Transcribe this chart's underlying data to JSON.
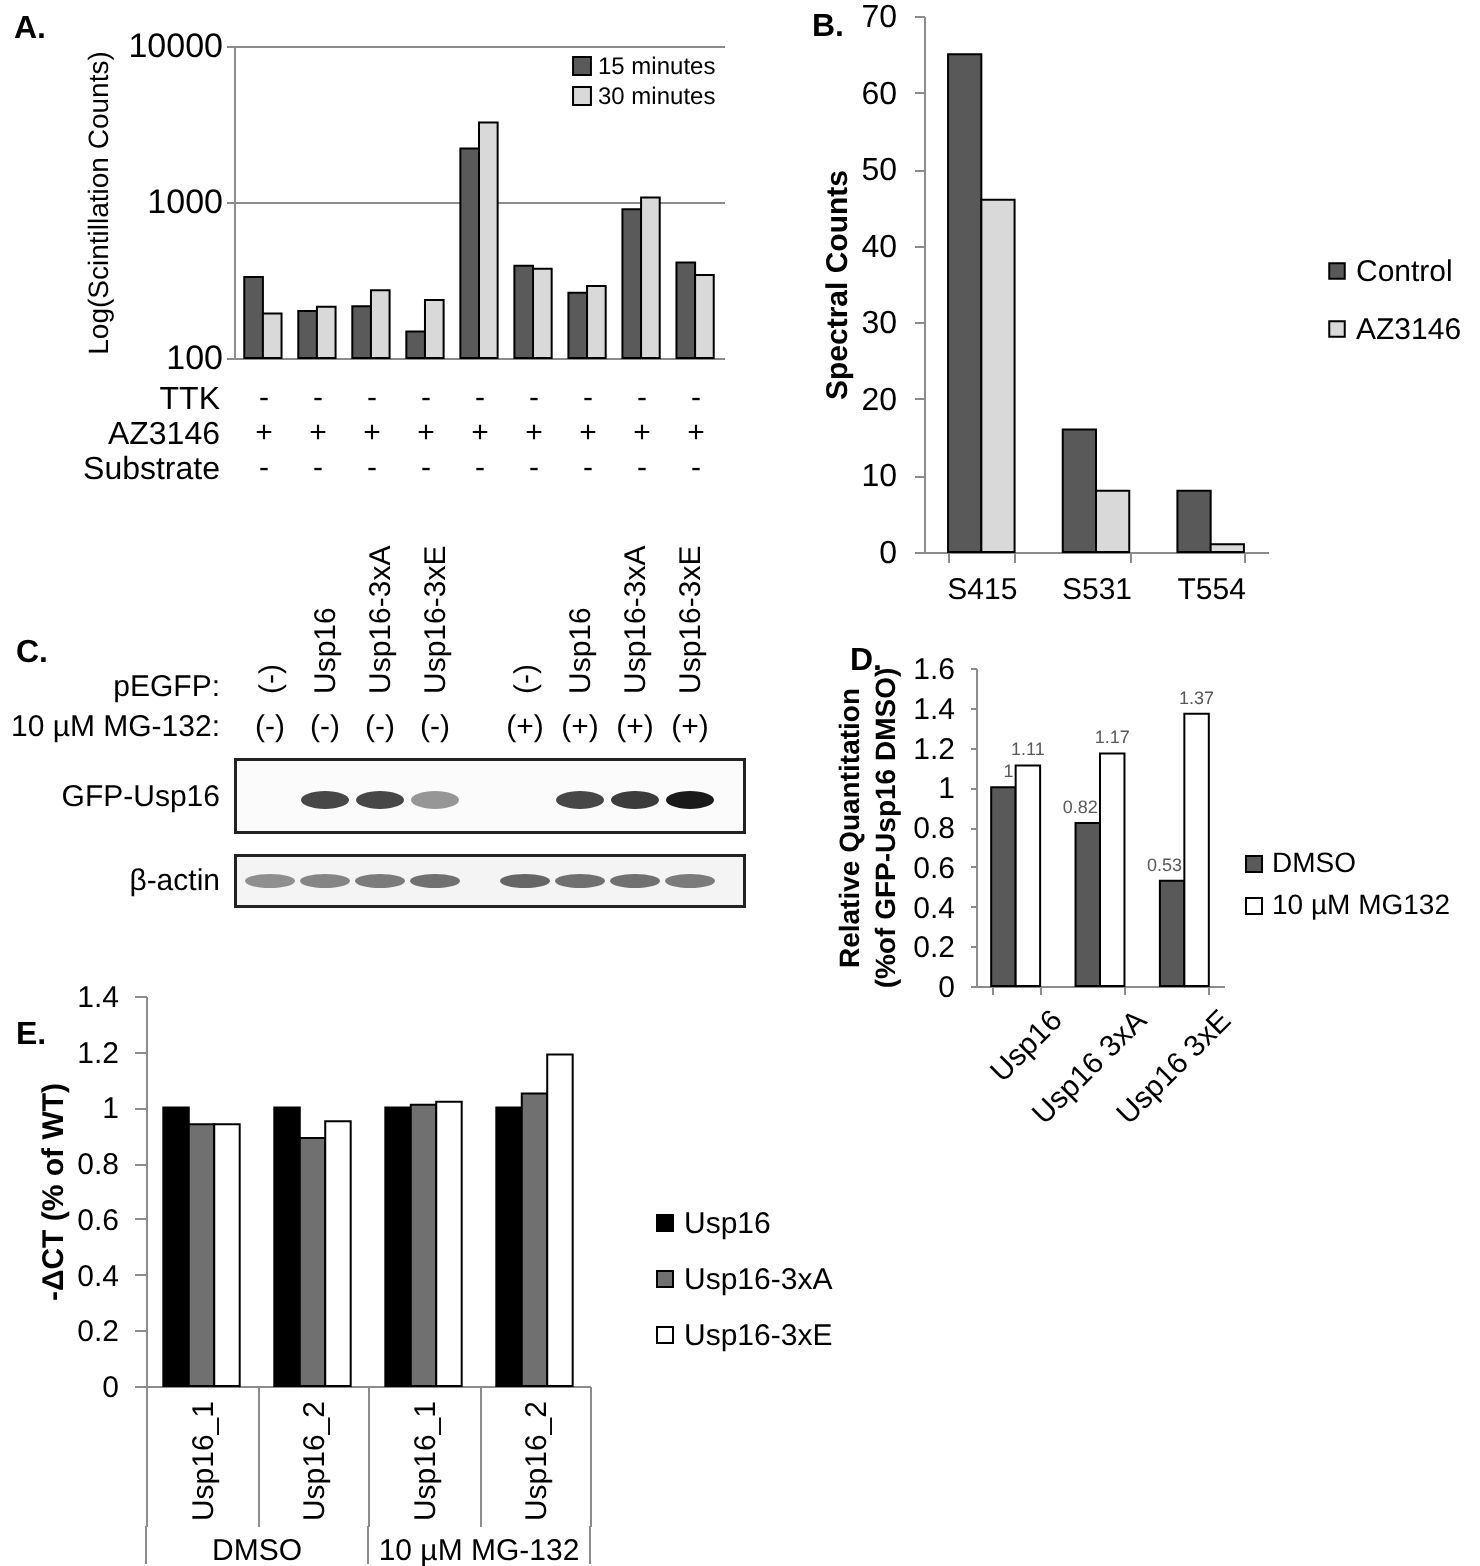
{
  "chart_data": [
    {
      "type": "bar",
      "title": "A.",
      "ylabel": "Log(Scintillation Counts)",
      "categories": [
        "-\n+\n-",
        "-\n+\n-",
        "-\n+\n-",
        "-\n+\n-",
        "-\n+\n-",
        "-\n+\n-",
        "-\n+\n-",
        "-\n+\n-",
        "-\n+\n-"
      ],
      "series": [
        {
          "name": "15 minutes",
          "color": "#5a5a5a",
          "values": [
            330,
            200,
            215,
            148,
            2200,
            390,
            262,
            900,
            410
          ]
        },
        {
          "name": "30 minutes",
          "color": "#d9d9d9",
          "values": [
            193,
            213,
            272,
            235,
            3230,
            373,
            289,
            1070,
            340
          ]
        }
      ],
      "log": true,
      "ylim": [
        100,
        10000
      ],
      "yticks": [
        100,
        1000,
        10000
      ],
      "grid": "y",
      "legend": "top right",
      "annotations": [
        "TTK",
        "AZ3146",
        "Substrate"
      ]
    },
    {
      "type": "bar",
      "title": "B.",
      "ylabel": "Spectral Counts",
      "categories": [
        "S415",
        "S531",
        "T554"
      ],
      "series": [
        {
          "name": "Control",
          "color": "#595959",
          "values": [
            65,
            16,
            8
          ]
        },
        {
          "name": "AZ3146",
          "color": "#d9d9d9",
          "values": [
            46,
            8,
            1
          ]
        }
      ],
      "ylim": [
        0,
        70
      ],
      "yticks": [
        0,
        10,
        20,
        30,
        40,
        50,
        60,
        70
      ],
      "legend": "right"
    },
    {
      "type": "other",
      "title": "C.",
      "categories": [
        "(-)",
        "Usp16",
        "Usp16-3xA",
        "Usp16-3xE",
        "(-)",
        "Usp16",
        "Usp16-3xA",
        "Usp16-3xE"
      ],
      "annotations": [
        "pEGFP:",
        "10 µM MG-132:",
        "(-)",
        "(-)",
        "(-)",
        "(-)",
        "(+)",
        "(+)",
        "(+)",
        "(+)",
        "GFP-Usp16",
        "β-actin"
      ]
    },
    {
      "type": "bar",
      "title": "D.",
      "ylabel": "Relative Quantitation\n(%of GFP-Usp16 DMSO)",
      "categories": [
        "Usp16",
        "Usp16 3xA",
        "Usp16 3xE"
      ],
      "series": [
        {
          "name": "DMSO",
          "color": "#595959",
          "values": [
            1,
            0.82,
            0.53
          ]
        },
        {
          "name": "10 µM MG132",
          "color": "#ffffff",
          "values": [
            1.11,
            1.17,
            1.37
          ]
        }
      ],
      "ylim": [
        0,
        1.6
      ],
      "yticks": [
        0,
        0.2,
        0.4,
        0.6,
        0.8,
        1,
        1.2,
        1.4,
        1.6
      ],
      "data_labels": true,
      "legend": "right"
    },
    {
      "type": "bar",
      "title": "E.",
      "ylabel": "-ΔCT (% of WT)",
      "categories": [
        "Usp16_1",
        "Usp16_2",
        "Usp16_1",
        "Usp16_2"
      ],
      "series": [
        {
          "name": "Usp16",
          "color": "#000000",
          "values": [
            1,
            1,
            1,
            1
          ]
        },
        {
          "name": "Usp16-3xA",
          "color": "#707070",
          "values": [
            0.94,
            0.89,
            1.01,
            1.05
          ]
        },
        {
          "name": "Usp16-3xE",
          "color": "#ffffff",
          "values": [
            0.94,
            0.95,
            1.02,
            1.19
          ]
        }
      ],
      "ylim": [
        0,
        1.4
      ],
      "yticks": [
        0,
        0.2,
        0.4,
        0.6,
        0.8,
        1,
        1.2,
        1.4
      ],
      "legend": "right",
      "annotations": [
        "DMSO",
        "10 µM MG-132"
      ]
    }
  ]
}
